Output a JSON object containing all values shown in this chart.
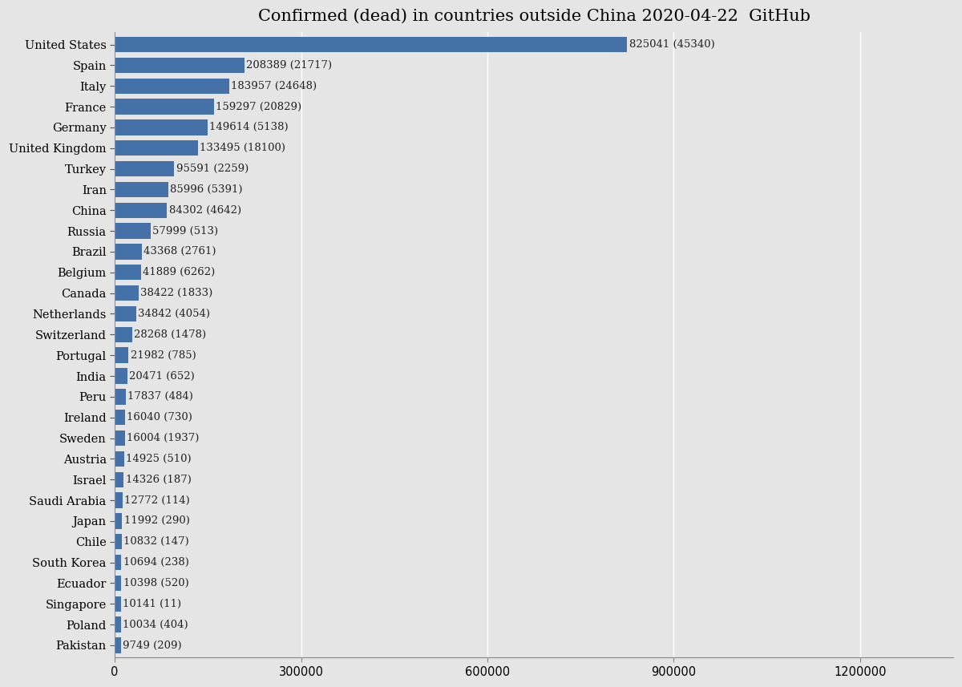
{
  "title": "Confirmed (dead) in countries outside China 2020-04-22  GitHub",
  "countries": [
    "United States",
    "Spain",
    "Italy",
    "France",
    "Germany",
    "United Kingdom",
    "Turkey",
    "Iran",
    "China",
    "Russia",
    "Brazil",
    "Belgium",
    "Canada",
    "Netherlands",
    "Switzerland",
    "Portugal",
    "India",
    "Peru",
    "Ireland",
    "Sweden",
    "Austria",
    "Israel",
    "Saudi Arabia",
    "Japan",
    "Chile",
    "South Korea",
    "Ecuador",
    "Singapore",
    "Poland",
    "Pakistan"
  ],
  "confirmed": [
    825041,
    208389,
    183957,
    159297,
    149614,
    133495,
    95591,
    85996,
    84302,
    57999,
    43368,
    41889,
    38422,
    34842,
    28268,
    21982,
    20471,
    17837,
    16040,
    16004,
    14925,
    14326,
    12772,
    11992,
    10832,
    10694,
    10398,
    10141,
    10034,
    9749
  ],
  "deaths": [
    45340,
    21717,
    24648,
    20829,
    5138,
    18100,
    2259,
    5391,
    4642,
    513,
    2761,
    6262,
    1833,
    4054,
    1478,
    785,
    652,
    484,
    730,
    1937,
    510,
    187,
    114,
    290,
    147,
    238,
    520,
    11,
    404,
    209
  ],
  "bar_color": "#4472a8",
  "bg_color": "#e5e5e5",
  "label_color": "#222222",
  "title_fontsize": 15,
  "tick_fontsize": 10.5,
  "label_fontsize": 9.5,
  "xlim": [
    0,
    1350000
  ],
  "xticks": [
    0,
    300000,
    600000,
    900000,
    1200000
  ]
}
